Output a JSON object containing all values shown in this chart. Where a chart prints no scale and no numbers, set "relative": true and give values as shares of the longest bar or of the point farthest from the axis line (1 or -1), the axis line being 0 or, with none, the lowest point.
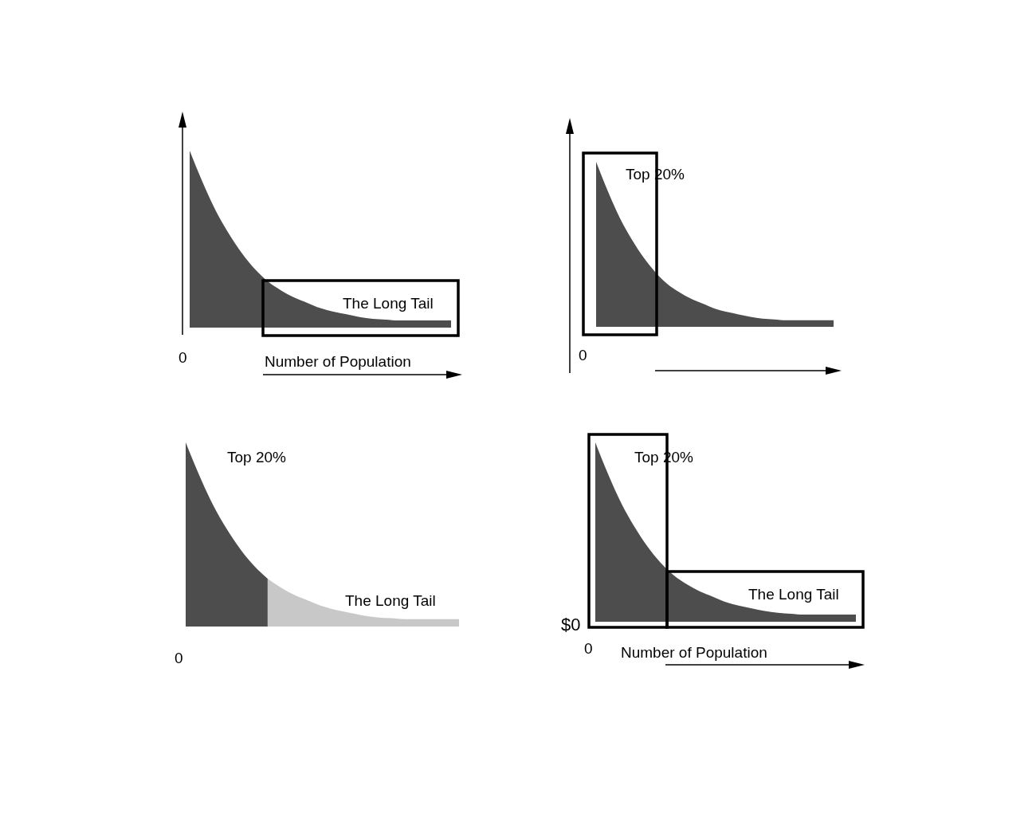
{
  "chart_data": [
    {
      "type": "area",
      "relative": true,
      "xlabel": "Number of Population",
      "categories": [
        null,
        null,
        null,
        null,
        null,
        null,
        null,
        null,
        null,
        null,
        null,
        null,
        null,
        null,
        null,
        null,
        null,
        null,
        null,
        null,
        null
      ],
      "series": [
        {
          "color": "#4d4d4d",
          "values": [
            1,
            0.82,
            0.66,
            0.53,
            0.42,
            0.33,
            0.26,
            0.21,
            0.17,
            0.14,
            0.11,
            0.09,
            0.075,
            0.06,
            0.05,
            0.045,
            0.04,
            0.04,
            0.04,
            0.04,
            0.04
          ]
        }
      ],
      "annotations": [
        "The Long Tail",
        "0"
      ]
    },
    {
      "type": "area",
      "relative": true,
      "categories": [
        null,
        null,
        null,
        null,
        null,
        null,
        null,
        null,
        null,
        null,
        null,
        null,
        null,
        null,
        null,
        null,
        null,
        null,
        null,
        null,
        null
      ],
      "series": [
        {
          "color": "#4d4d4d",
          "values": [
            1,
            0.82,
            0.66,
            0.53,
            0.42,
            0.33,
            0.26,
            0.21,
            0.17,
            0.14,
            0.11,
            0.09,
            0.075,
            0.06,
            0.05,
            0.045,
            0.04,
            0.04,
            0.04,
            0.04,
            0.04
          ]
        }
      ],
      "annotations": [
        "Top 20%",
        "0"
      ]
    },
    {
      "type": "area",
      "relative": true,
      "categories": [
        null,
        null,
        null,
        null,
        null,
        null,
        null,
        null,
        null,
        null,
        null,
        null,
        null,
        null,
        null,
        null,
        null,
        null,
        null,
        null,
        null
      ],
      "series": [
        {
          "color": "#4d4d4d",
          "values": [
            1,
            0.82,
            0.66,
            0.53,
            0.42,
            0.33,
            0.26,
            null,
            null,
            null,
            null,
            null,
            null,
            null,
            null,
            null,
            null,
            null,
            null,
            null,
            null
          ]
        },
        {
          "color": "#c8c8c8",
          "values": [
            null,
            null,
            null,
            null,
            null,
            null,
            0.26,
            0.21,
            0.17,
            0.14,
            0.11,
            0.09,
            0.075,
            0.06,
            0.05,
            0.045,
            0.04,
            0.04,
            0.04,
            0.04,
            0.04
          ]
        }
      ],
      "annotations": [
        "Top 20%",
        "The Long Tail",
        "0"
      ]
    },
    {
      "type": "area",
      "relative": true,
      "xlabel": "Number of Population",
      "categories": [
        null,
        null,
        null,
        null,
        null,
        null,
        null,
        null,
        null,
        null,
        null,
        null,
        null,
        null,
        null,
        null,
        null,
        null,
        null,
        null,
        null
      ],
      "series": [
        {
          "color": "#4d4d4d",
          "values": [
            1,
            0.82,
            0.66,
            0.53,
            0.42,
            0.33,
            0.26,
            0.21,
            0.17,
            0.14,
            0.11,
            0.09,
            0.075,
            0.06,
            0.05,
            0.045,
            0.04,
            0.04,
            0.04,
            0.04,
            0.04
          ]
        }
      ],
      "annotations": [
        "Top 20%",
        "The Long Tail",
        "$0",
        "0"
      ]
    }
  ]
}
